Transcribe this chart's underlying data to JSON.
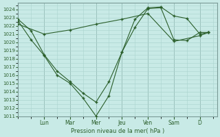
{
  "bg_color": "#c8eae6",
  "line_color": "#2a5e2a",
  "grid_major_color": "#aad4ce",
  "grid_minor_color": "#aad4ce",
  "vline_color": "#7a9a96",
  "ylabel": "Pression niveau de la mer( hPa )",
  "ylim": [
    1011,
    1024.8
  ],
  "yticks": [
    1011,
    1012,
    1013,
    1014,
    1015,
    1016,
    1017,
    1018,
    1019,
    1020,
    1021,
    1022,
    1023,
    1024
  ],
  "day_labels": [
    "Lun",
    "Mar",
    "Mer",
    "Jeu",
    "Ven",
    "Sam",
    "D"
  ],
  "day_tick_positions": [
    1.5,
    3.0,
    4.5,
    6.0,
    7.5,
    9.0,
    10.5
  ],
  "xlim": [
    0,
    11.5
  ],
  "line1_x": [
    0,
    0.75,
    1.5,
    2.25,
    3.0,
    3.75,
    4.5,
    5.25,
    6.0,
    6.75,
    7.5,
    8.25,
    9.0,
    9.75,
    10.5,
    11.0
  ],
  "line1_y": [
    1022.8,
    1021.4,
    1018.5,
    1016.5,
    1015.2,
    1013.8,
    1012.7,
    1015.2,
    1018.8,
    1021.8,
    1024.1,
    1024.2,
    1020.3,
    1020.2,
    1021.2,
    1021.2
  ],
  "line2_x": [
    0,
    0.75,
    1.5,
    2.25,
    3.0,
    3.75,
    4.5,
    5.25,
    6.0,
    6.75,
    7.5,
    8.25,
    9.0,
    9.75,
    10.5,
    11.0
  ],
  "line2_y": [
    1022.6,
    1020.3,
    1018.4,
    1016.0,
    1015.0,
    1013.2,
    1011.0,
    1013.5,
    1018.8,
    1022.8,
    1024.2,
    1024.3,
    1023.2,
    1022.9,
    1021.0,
    1021.2
  ],
  "line3_x": [
    0,
    1.5,
    3.0,
    4.5,
    6.0,
    7.5,
    9.0,
    10.5,
    11.0
  ],
  "line3_y": [
    1022.2,
    1021.0,
    1021.5,
    1022.2,
    1022.8,
    1023.5,
    1020.1,
    1020.8,
    1021.2
  ]
}
